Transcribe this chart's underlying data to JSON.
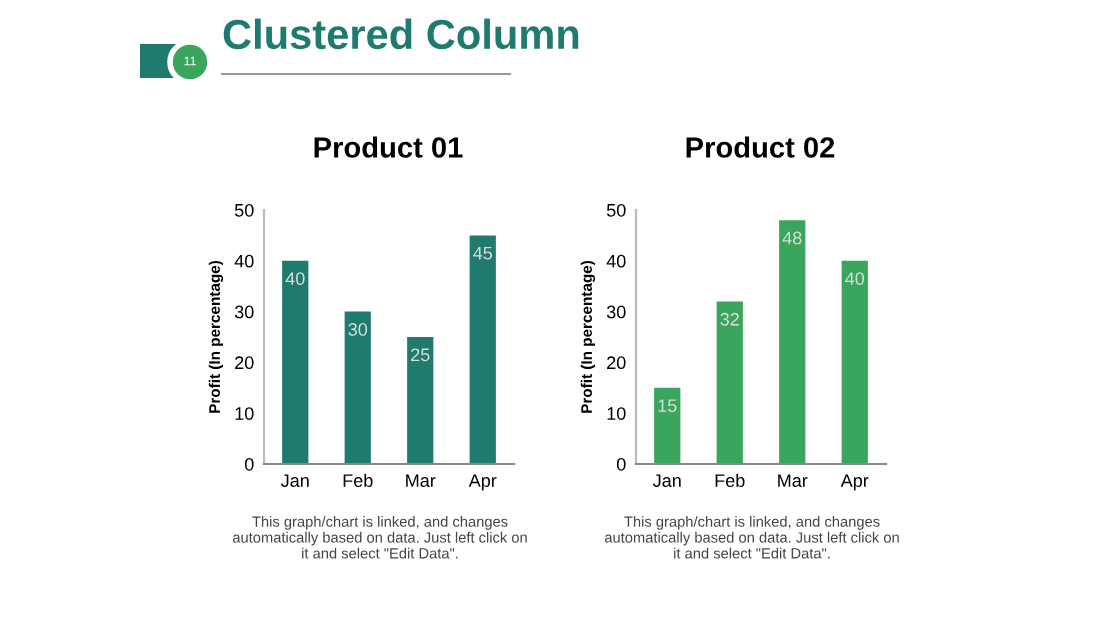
{
  "chart_data": [
    {
      "type": "other",
      "title": "Clustered Column",
      "annotations": [
        "11"
      ]
    },
    {
      "type": "bar",
      "title": "Product 01",
      "ylabel": "Profit (In percentage)",
      "categories": [
        "Jan",
        "Feb",
        "Mar",
        "Apr"
      ],
      "values": [
        40,
        30,
        25,
        45
      ],
      "color": "#1e7b6e",
      "ylim": [
        0,
        50
      ],
      "yticks": [
        0,
        10,
        20,
        30,
        40,
        50
      ],
      "data_labels": true,
      "annotations": [
        "This graph/chart is linked, and changes automatically based on data. Just left click on it and select \"Edit Data\"."
      ]
    },
    {
      "type": "bar",
      "title": "Product 02",
      "ylabel": "Profit (In percentage)",
      "categories": [
        "Jan",
        "Feb",
        "Mar",
        "Apr"
      ],
      "values": [
        15,
        32,
        48,
        40
      ],
      "color": "#3aa55c",
      "ylim": [
        0,
        50
      ],
      "yticks": [
        0,
        10,
        20,
        30,
        40,
        50
      ],
      "data_labels": true,
      "annotations": [
        "This graph/chart is linked, and changes automatically based on data. Just left click on it and select \"Edit Data\"."
      ]
    }
  ]
}
